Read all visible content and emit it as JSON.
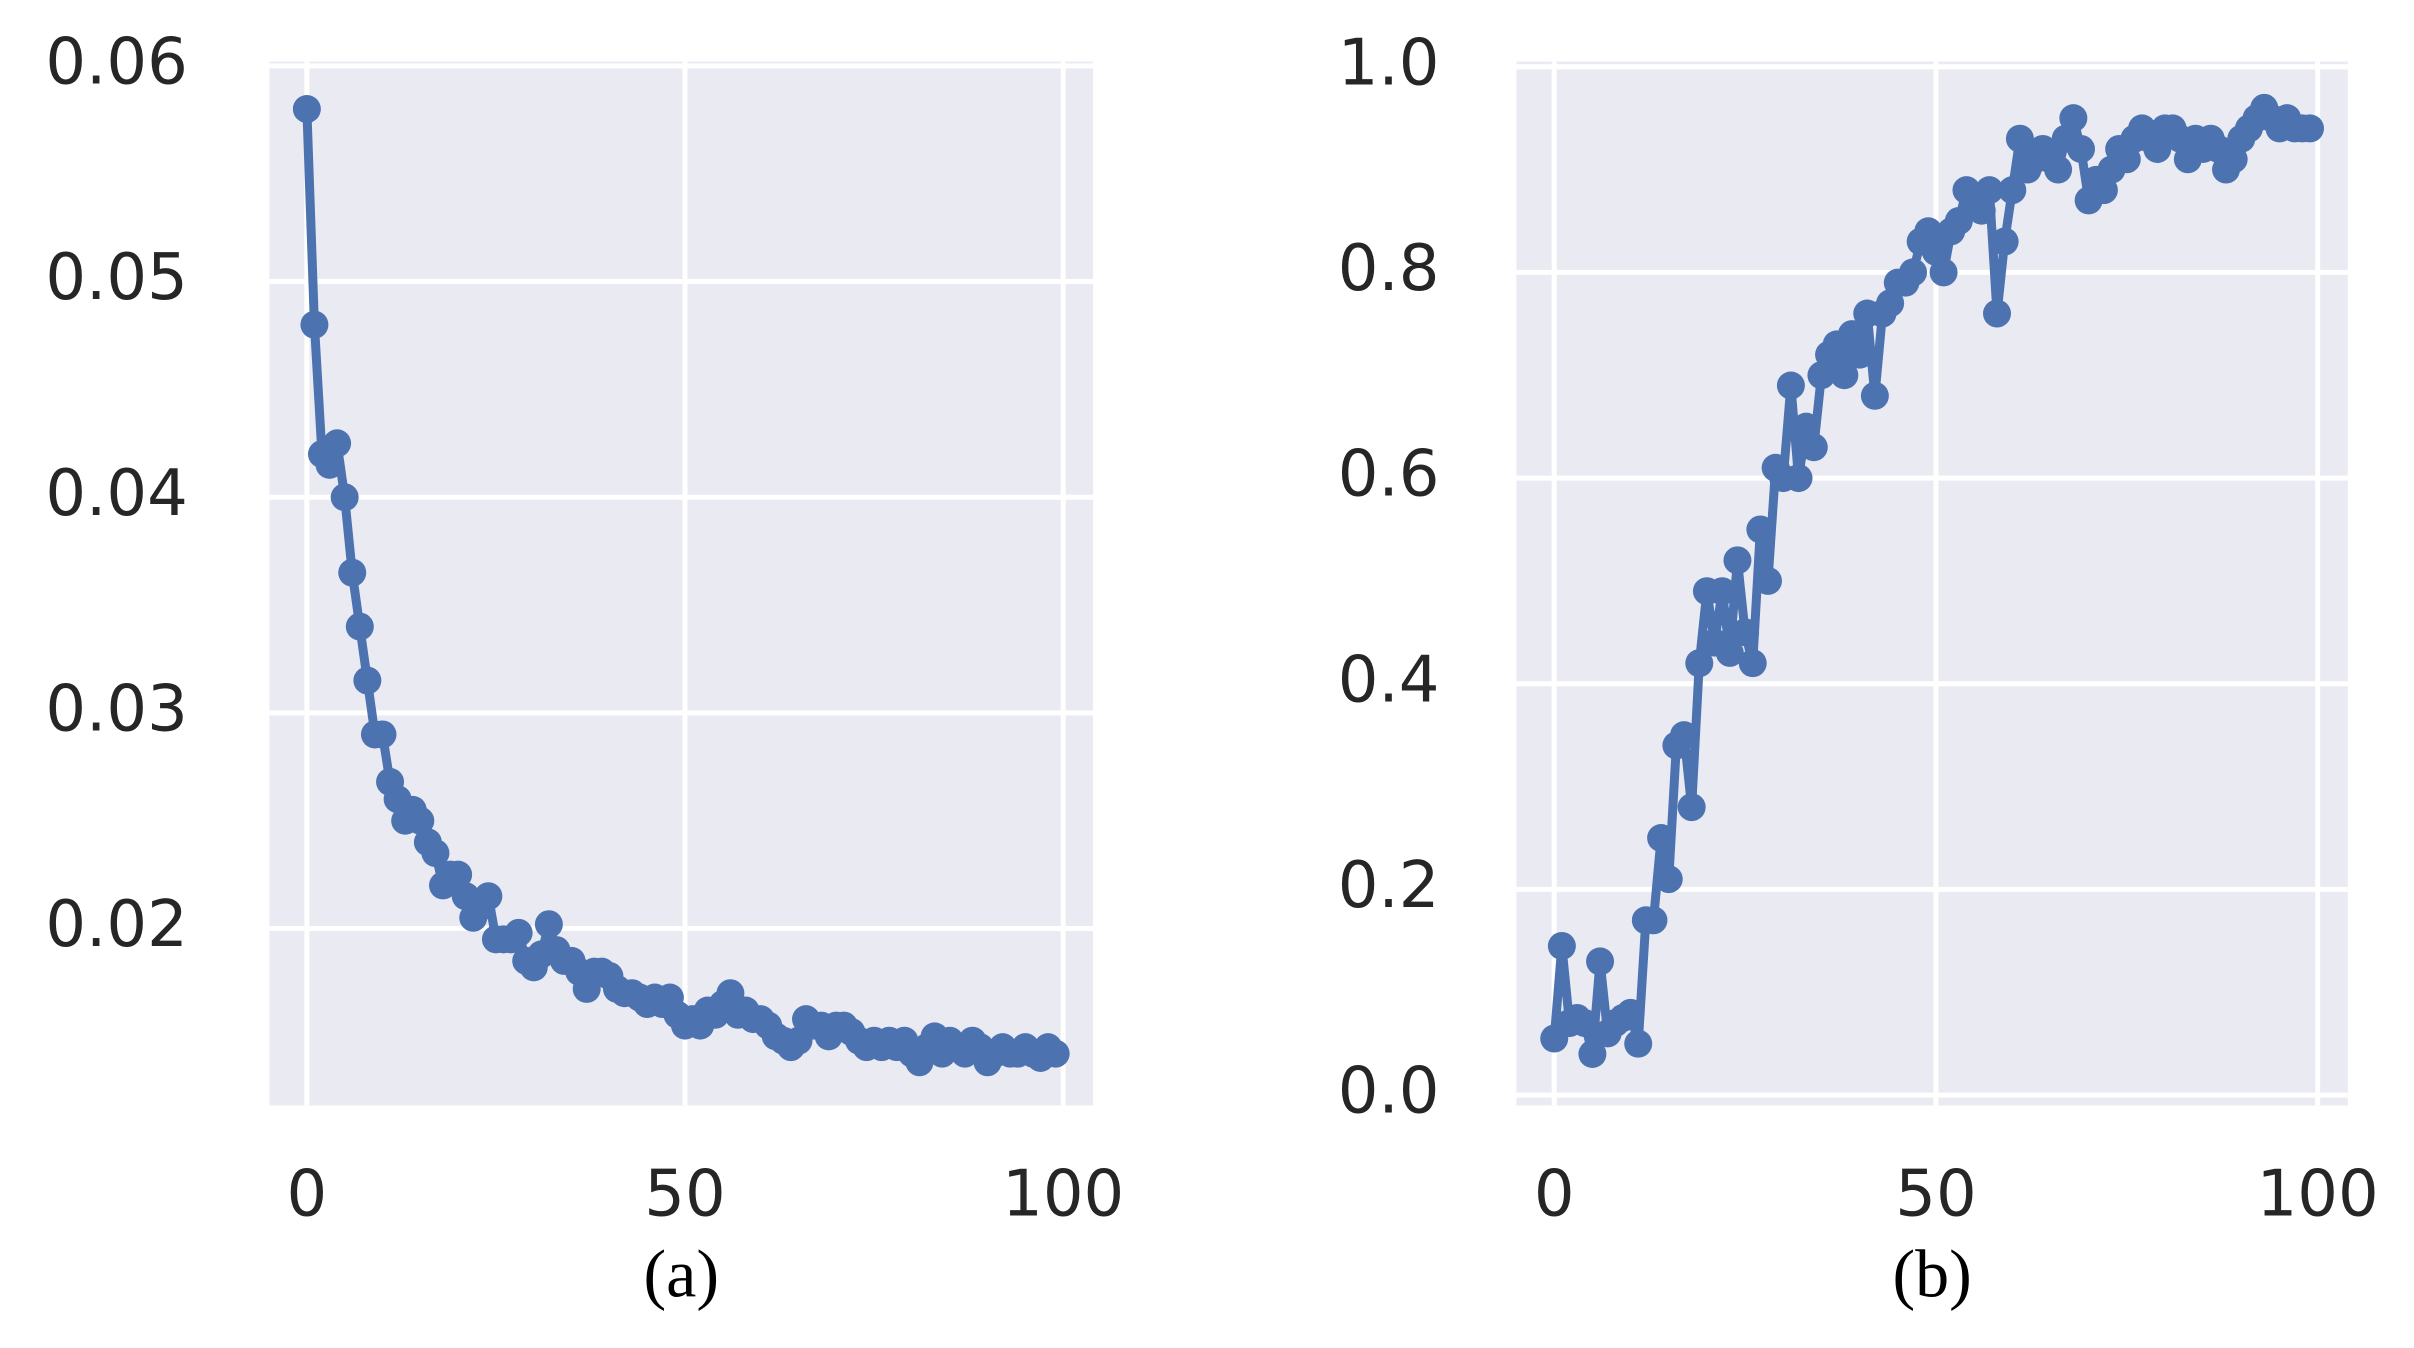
{
  "chart_data": [
    {
      "type": "line",
      "caption": "(a)",
      "color": "#4c72b0",
      "grid": true,
      "xlim": [
        -4.95,
        103.95
      ],
      "xticks": [
        0,
        50,
        100
      ],
      "ylim": [
        0.0118,
        0.0602
      ],
      "yticks": [
        0.02,
        0.03,
        0.04,
        0.05,
        0.06
      ],
      "x": [
        0,
        1,
        2,
        3,
        4,
        5,
        6,
        7,
        8,
        9,
        10,
        11,
        12,
        13,
        14,
        15,
        16,
        17,
        18,
        19,
        20,
        21,
        22,
        23,
        24,
        25,
        26,
        27,
        28,
        29,
        30,
        31,
        32,
        33,
        34,
        35,
        36,
        37,
        38,
        39,
        40,
        41,
        42,
        43,
        44,
        45,
        46,
        47,
        48,
        49,
        50,
        51,
        52,
        53,
        54,
        55,
        56,
        57,
        58,
        59,
        60,
        61,
        62,
        63,
        64,
        65,
        66,
        67,
        68,
        69,
        70,
        71,
        72,
        73,
        74,
        75,
        76,
        77,
        78,
        79,
        80,
        81,
        82,
        83,
        84,
        85,
        86,
        87,
        88,
        89,
        90,
        91,
        92,
        93,
        94,
        95,
        96,
        97,
        98,
        99
      ],
      "values": [
        0.058,
        0.048,
        0.042,
        0.0415,
        0.0425,
        0.04,
        0.0365,
        0.034,
        0.0315,
        0.029,
        0.029,
        0.0268,
        0.026,
        0.025,
        0.0255,
        0.025,
        0.024,
        0.0235,
        0.022,
        0.0225,
        0.0225,
        0.0215,
        0.0205,
        0.021,
        0.0215,
        0.0195,
        0.0195,
        0.0195,
        0.0198,
        0.0185,
        0.0182,
        0.0188,
        0.0202,
        0.019,
        0.0185,
        0.0185,
        0.018,
        0.0172,
        0.018,
        0.018,
        0.0178,
        0.0172,
        0.017,
        0.017,
        0.0168,
        0.0165,
        0.0168,
        0.0165,
        0.0168,
        0.016,
        0.0155,
        0.0158,
        0.0155,
        0.0162,
        0.016,
        0.0165,
        0.017,
        0.016,
        0.0162,
        0.0158,
        0.0158,
        0.0155,
        0.015,
        0.0148,
        0.0145,
        0.0148,
        0.0158,
        0.0155,
        0.0155,
        0.015,
        0.0155,
        0.0155,
        0.0152,
        0.0148,
        0.0145,
        0.0148,
        0.0145,
        0.0148,
        0.0145,
        0.0148,
        0.0142,
        0.0138,
        0.0145,
        0.015,
        0.0142,
        0.0148,
        0.0145,
        0.0142,
        0.0148,
        0.0145,
        0.0138,
        0.0142,
        0.0145,
        0.0142,
        0.0142,
        0.0145,
        0.0142,
        0.014,
        0.0145,
        0.0142
      ]
    },
    {
      "type": "line",
      "caption": "(b)",
      "color": "#4c72b0",
      "grid": true,
      "xlim": [
        -4.95,
        103.95
      ],
      "xticks": [
        0,
        50,
        100
      ],
      "ylim": [
        -0.01,
        1.005
      ],
      "yticks": [
        {
          "value": 0,
          "label": "0.0"
        },
        0.2,
        0.4,
        0.6,
        0.8,
        {
          "value": 1,
          "label": "1.0"
        }
      ],
      "x": [
        0,
        1,
        2,
        3,
        4,
        5,
        6,
        7,
        8,
        9,
        10,
        11,
        12,
        13,
        14,
        15,
        16,
        17,
        18,
        19,
        20,
        21,
        22,
        23,
        24,
        25,
        26,
        27,
        28,
        29,
        30,
        31,
        32,
        33,
        34,
        35,
        36,
        37,
        38,
        39,
        40,
        41,
        42,
        43,
        44,
        45,
        46,
        47,
        48,
        49,
        50,
        51,
        52,
        53,
        54,
        55,
        56,
        57,
        58,
        59,
        60,
        61,
        62,
        63,
        64,
        65,
        66,
        67,
        68,
        69,
        70,
        71,
        72,
        73,
        74,
        75,
        76,
        77,
        78,
        79,
        80,
        81,
        82,
        83,
        84,
        85,
        86,
        87,
        88,
        89,
        90,
        91,
        92,
        93,
        94,
        95,
        96,
        97,
        98,
        99
      ],
      "values": [
        0.055,
        0.145,
        0.07,
        0.075,
        0.07,
        0.04,
        0.13,
        0.06,
        0.07,
        0.075,
        0.08,
        0.05,
        0.17,
        0.17,
        0.25,
        0.21,
        0.34,
        0.35,
        0.28,
        0.42,
        0.49,
        0.44,
        0.49,
        0.43,
        0.52,
        0.45,
        0.42,
        0.55,
        0.5,
        0.61,
        0.6,
        0.69,
        0.6,
        0.65,
        0.63,
        0.7,
        0.72,
        0.73,
        0.7,
        0.74,
        0.72,
        0.76,
        0.68,
        0.76,
        0.77,
        0.79,
        0.79,
        0.8,
        0.83,
        0.84,
        0.82,
        0.8,
        0.84,
        0.85,
        0.88,
        0.87,
        0.86,
        0.88,
        0.76,
        0.83,
        0.88,
        0.93,
        0.9,
        0.91,
        0.92,
        0.91,
        0.9,
        0.93,
        0.95,
        0.92,
        0.87,
        0.89,
        0.88,
        0.9,
        0.92,
        0.91,
        0.93,
        0.94,
        0.93,
        0.92,
        0.94,
        0.94,
        0.93,
        0.91,
        0.93,
        0.92,
        0.93,
        0.92,
        0.9,
        0.91,
        0.93,
        0.94,
        0.95,
        0.96,
        0.95,
        0.94,
        0.95,
        0.94,
        0.94,
        0.94
      ]
    }
  ]
}
